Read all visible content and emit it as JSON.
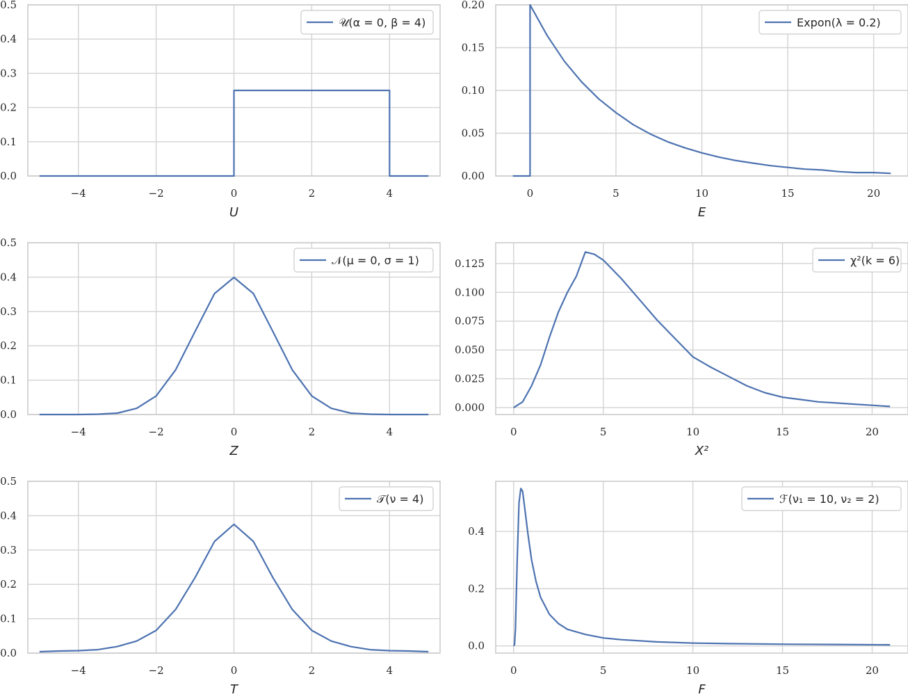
{
  "colors": {
    "line": "#4c72b0",
    "grid": "#d3d3d3",
    "frame": "#cccccc",
    "text": "#262626"
  },
  "chart_data": [
    {
      "type": "line",
      "grid": true,
      "legend_position": "top-right",
      "xlabel": "U",
      "legend": "𝒰(α = 0, β = 4)",
      "xlim": [
        -5.3,
        5.3
      ],
      "ylim": [
        0,
        0.5
      ],
      "xticks": [
        -4,
        -2,
        0,
        2,
        4
      ],
      "xtick_labels": [
        "−4",
        "−2",
        "0",
        "2",
        "4"
      ],
      "yticks": [
        0,
        0.1,
        0.2,
        0.3,
        0.4,
        0.5
      ],
      "ytick_labels": [
        "0.0",
        "0.1",
        "0.2",
        "0.3",
        "0.4",
        "0.5"
      ],
      "series": [
        {
          "x": [
            -5,
            0,
            0,
            4,
            4,
            5
          ],
          "y": [
            0,
            0,
            0.25,
            0.25,
            0,
            0
          ]
        }
      ]
    },
    {
      "type": "line",
      "grid": true,
      "legend_position": "top-right",
      "xlabel": "E",
      "legend": "Expon(λ = 0.2)",
      "xlim": [
        -2.0,
        22.0
      ],
      "ylim": [
        0,
        0.2
      ],
      "xticks": [
        0,
        5,
        10,
        15,
        20
      ],
      "xtick_labels": [
        "0",
        "5",
        "10",
        "15",
        "20"
      ],
      "yticks": [
        0,
        0.05,
        0.1,
        0.15,
        0.2
      ],
      "ytick_labels": [
        "0.00",
        "0.05",
        "0.10",
        "0.15",
        "0.20"
      ],
      "series": [
        {
          "x": [
            -1,
            0,
            0,
            1,
            2,
            3,
            4,
            5,
            6,
            7,
            8,
            9,
            10,
            11,
            12,
            13,
            14,
            15,
            16,
            17,
            18,
            19,
            20,
            21
          ],
          "y": [
            0,
            0,
            0.2,
            0.164,
            0.134,
            0.11,
            0.09,
            0.074,
            0.06,
            0.049,
            0.04,
            0.033,
            0.027,
            0.022,
            0.018,
            0.015,
            0.012,
            0.01,
            0.008,
            0.007,
            0.005,
            0.004,
            0.004,
            0.003
          ]
        }
      ]
    },
    {
      "type": "line",
      "grid": true,
      "legend_position": "top-right",
      "xlabel": "Z",
      "legend": "𝒩(μ = 0, σ = 1)",
      "xlim": [
        -5.3,
        5.3
      ],
      "ylim": [
        0,
        0.5
      ],
      "xticks": [
        -4,
        -2,
        0,
        2,
        4
      ],
      "xtick_labels": [
        "−4",
        "−2",
        "0",
        "2",
        "4"
      ],
      "yticks": [
        0,
        0.1,
        0.2,
        0.3,
        0.4,
        0.5
      ],
      "ytick_labels": [
        "0.0",
        "0.1",
        "0.2",
        "0.3",
        "0.4",
        "0.5"
      ],
      "series": [
        {
          "x": [
            -5,
            -4.5,
            -4,
            -3.5,
            -3,
            -2.5,
            -2,
            -1.5,
            -1,
            -0.5,
            0,
            0.5,
            1,
            1.5,
            2,
            2.5,
            3,
            3.5,
            4,
            4.5,
            5
          ],
          "y": [
            0,
            0,
            0,
            0.001,
            0.004,
            0.018,
            0.054,
            0.13,
            0.242,
            0.352,
            0.399,
            0.352,
            0.242,
            0.13,
            0.054,
            0.018,
            0.004,
            0.001,
            0,
            0,
            0
          ]
        }
      ]
    },
    {
      "type": "line",
      "grid": true,
      "legend_position": "top-right",
      "xlabel": "X²",
      "legend": "χ²(k = 6)",
      "xlim": [
        -1.0,
        22.0
      ],
      "ylim": [
        -0.006,
        0.143
      ],
      "xticks": [
        0,
        5,
        10,
        15,
        20
      ],
      "xtick_labels": [
        "0",
        "5",
        "10",
        "15",
        "20"
      ],
      "yticks": [
        0,
        0.025,
        0.05,
        0.075,
        0.1,
        0.125
      ],
      "ytick_labels": [
        "0.000",
        "0.025",
        "0.050",
        "0.075",
        "0.100",
        "0.125"
      ],
      "series": [
        {
          "x": [
            0,
            0.5,
            1,
            1.5,
            2,
            2.5,
            3,
            3.5,
            4,
            4.5,
            5,
            6,
            7,
            8,
            9,
            10,
            11,
            12,
            13,
            14,
            15,
            16,
            17,
            18,
            19,
            20,
            21
          ],
          "y": [
            0,
            0.005,
            0.019,
            0.037,
            0.061,
            0.083,
            0.1,
            0.114,
            0.135,
            0.133,
            0.128,
            0.112,
            0.094,
            0.076,
            0.06,
            0.044,
            0.035,
            0.027,
            0.019,
            0.013,
            0.009,
            0.007,
            0.005,
            0.004,
            0.003,
            0.002,
            0.001
          ]
        }
      ]
    },
    {
      "type": "line",
      "grid": true,
      "legend_position": "top-right",
      "xlabel": "T",
      "legend": "𝒯(ν = 4)",
      "xlim": [
        -5.3,
        5.3
      ],
      "ylim": [
        0,
        0.5
      ],
      "xticks": [
        -4,
        -2,
        0,
        2,
        4
      ],
      "xtick_labels": [
        "−4",
        "−2",
        "0",
        "2",
        "4"
      ],
      "yticks": [
        0,
        0.1,
        0.2,
        0.3,
        0.4,
        0.5
      ],
      "ytick_labels": [
        "0.0",
        "0.1",
        "0.2",
        "0.3",
        "0.4",
        "0.5"
      ],
      "series": [
        {
          "x": [
            -5,
            -4.5,
            -4,
            -3.5,
            -3,
            -2.5,
            -2,
            -1.5,
            -1,
            -0.5,
            0,
            0.5,
            1,
            1.5,
            2,
            2.5,
            3,
            3.5,
            4,
            4.5,
            5
          ],
          "y": [
            0.004,
            0.006,
            0.007,
            0.01,
            0.019,
            0.035,
            0.066,
            0.127,
            0.22,
            0.325,
            0.375,
            0.325,
            0.22,
            0.127,
            0.066,
            0.035,
            0.019,
            0.01,
            0.007,
            0.006,
            0.004
          ]
        }
      ]
    },
    {
      "type": "line",
      "grid": true,
      "legend_position": "top-right",
      "xlabel": "F",
      "legend": "ℱ(ν₁ = 10, ν₂ = 2)",
      "xlim": [
        -1.0,
        22.0
      ],
      "ylim": [
        -0.025,
        0.575
      ],
      "xticks": [
        0,
        5,
        10,
        15,
        20
      ],
      "xtick_labels": [
        "0",
        "5",
        "10",
        "15",
        "20"
      ],
      "yticks": [
        0,
        0.2,
        0.4
      ],
      "ytick_labels": [
        "0.0",
        "0.2",
        "0.4"
      ],
      "series": [
        {
          "x": [
            0,
            0.05,
            0.1,
            0.2,
            0.3,
            0.4,
            0.5,
            0.6,
            0.8,
            1,
            1.25,
            1.5,
            2,
            2.5,
            3,
            4,
            5,
            6,
            8,
            10,
            12,
            15,
            18,
            21
          ],
          "y": [
            0,
            0.005,
            0.06,
            0.3,
            0.5,
            0.55,
            0.54,
            0.49,
            0.39,
            0.3,
            0.225,
            0.17,
            0.11,
            0.078,
            0.058,
            0.04,
            0.028,
            0.022,
            0.014,
            0.01,
            0.008,
            0.006,
            0.005,
            0.004
          ]
        }
      ]
    }
  ]
}
